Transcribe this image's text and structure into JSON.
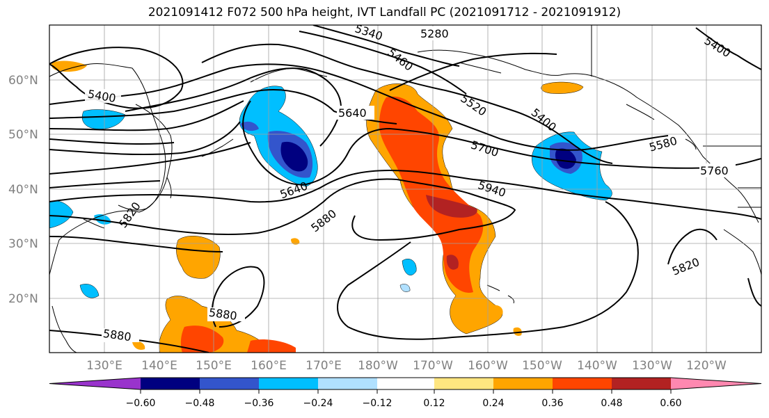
{
  "title": "2021091412 F072 500 hPa height, IVT Landfall PC (2021091712 - 2021091912)",
  "lat_labels": [
    "60°N",
    "50°N",
    "40°N",
    "30°N",
    "20°N"
  ],
  "lon_labels": [
    "130°E",
    "140°E",
    "150°E",
    "160°E",
    "170°E",
    "180°W",
    "170°W",
    "160°W",
    "150°W",
    "140°W",
    "130°W",
    "120°W"
  ],
  "contour_labels": [
    "5400",
    "5340",
    "5280",
    "5460",
    "5520",
    "5640",
    "5400",
    "5580",
    "5700",
    "5760",
    "5640",
    "5940",
    "5880",
    "5820",
    "5820",
    "5880",
    "5880",
    "5400"
  ],
  "colorbar": {
    "ticks": [
      "−0.60",
      "−0.48",
      "−0.36",
      "−0.24",
      "−0.12",
      "0.12",
      "0.24",
      "0.36",
      "0.48",
      "0.60"
    ],
    "colors": [
      "#9933cc",
      "#000080",
      "#3355cc",
      "#00bfff",
      "#b0e0ff",
      "#ffffff",
      "#ffe680",
      "#ffa500",
      "#ff4500",
      "#b22222",
      "#ff88b0"
    ]
  }
}
